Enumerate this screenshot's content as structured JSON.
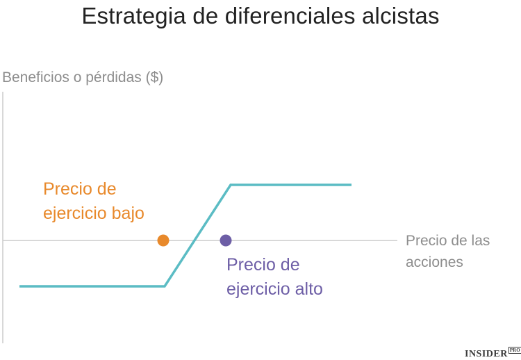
{
  "title": "Estrategia de diferenciales alcistas",
  "y_axis_label": "Beneficios o pérdidas ($)",
  "x_axis_label": {
    "line1": "Precio de las",
    "line2": "acciones"
  },
  "annotations": {
    "low_strike": {
      "line1": "Precio de",
      "line2": "ejercicio bajo",
      "color": "#e8892b"
    },
    "high_strike": {
      "line1": "Precio de",
      "line2": "ejercicio alto",
      "color": "#6d5ea6"
    }
  },
  "payoff_line_color": "#5bbcc4",
  "axis_color": "#cccccc",
  "brand": {
    "name": "INSIDER",
    "tag": "PRO"
  }
}
